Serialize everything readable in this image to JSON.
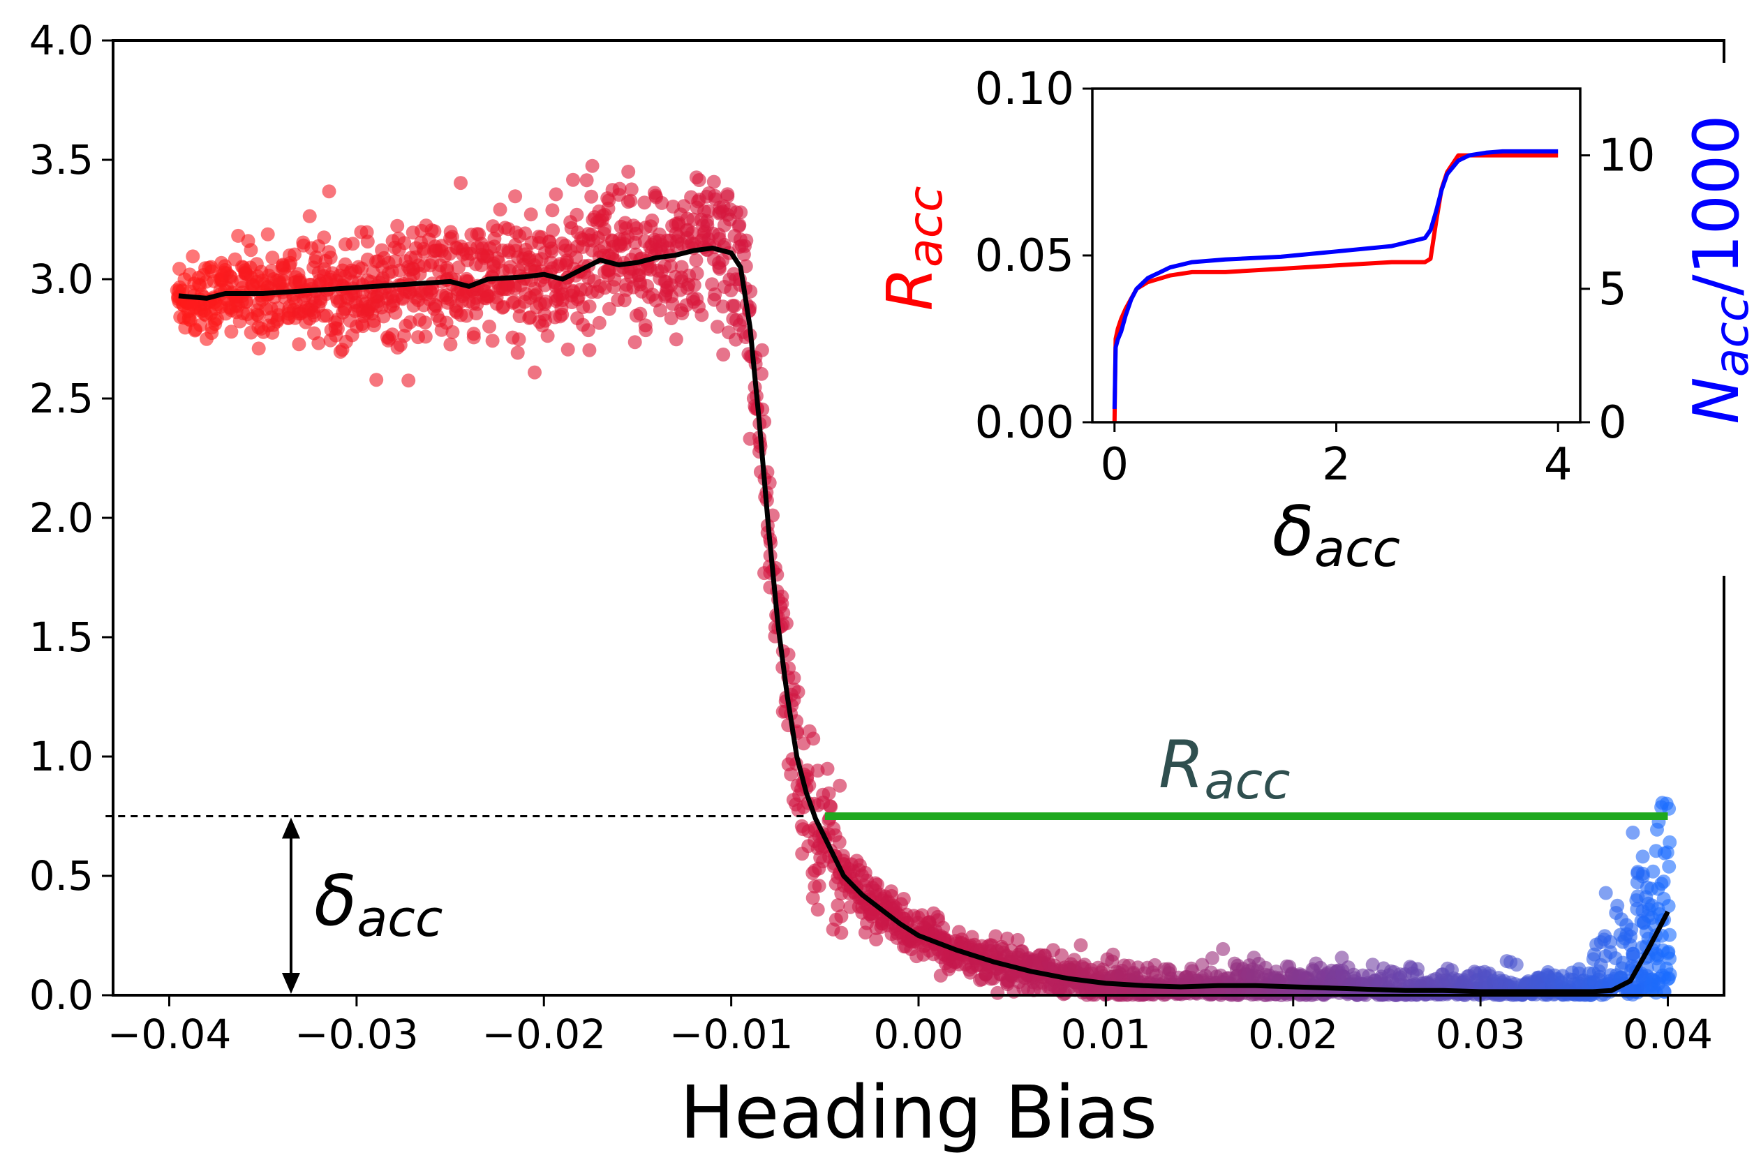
{
  "chart_data": {
    "type": "scatter",
    "main": {
      "xlabel": "Heading Bias",
      "ylabel": "",
      "xlim": [
        -0.043,
        0.043
      ],
      "ylim": [
        0.0,
        4.0
      ],
      "x_ticks": [
        -0.04,
        -0.03,
        -0.02,
        -0.01,
        0.0,
        0.01,
        0.02,
        0.03,
        0.04
      ],
      "x_tick_labels": [
        "−0.04",
        "−0.03",
        "−0.02",
        "−0.01",
        "0.00",
        "0.01",
        "0.02",
        "0.03",
        "0.04"
      ],
      "y_ticks": [
        0.0,
        0.5,
        1.0,
        1.5,
        2.0,
        2.5,
        3.0,
        3.5,
        4.0
      ],
      "y_tick_labels": [
        "0.0",
        "0.5",
        "1.0",
        "1.5",
        "2.0",
        "2.5",
        "3.0",
        "3.5",
        "4.0"
      ],
      "scatter_color_range": [
        "#ff1a1a",
        "#c8174a",
        "#1a6cff"
      ],
      "mean_curve": {
        "color": "#000000",
        "x": [
          -0.0395,
          -0.038,
          -0.037,
          -0.035,
          -0.033,
          -0.031,
          -0.029,
          -0.027,
          -0.025,
          -0.024,
          -0.023,
          -0.021,
          -0.02,
          -0.019,
          -0.018,
          -0.017,
          -0.016,
          -0.015,
          -0.014,
          -0.013,
          -0.012,
          -0.011,
          -0.01,
          -0.0095,
          -0.009,
          -0.0085,
          -0.008,
          -0.0075,
          -0.007,
          -0.0065,
          -0.006,
          -0.0055,
          -0.005,
          -0.0045,
          -0.004,
          -0.003,
          -0.002,
          -0.001,
          0.0,
          0.002,
          0.004,
          0.006,
          0.008,
          0.01,
          0.012,
          0.014,
          0.016,
          0.018,
          0.02,
          0.022,
          0.024,
          0.026,
          0.028,
          0.03,
          0.032,
          0.034,
          0.036,
          0.037,
          0.038,
          0.039,
          0.04
        ],
        "y": [
          2.93,
          2.92,
          2.94,
          2.94,
          2.95,
          2.96,
          2.97,
          2.98,
          2.99,
          2.97,
          3.0,
          3.01,
          3.02,
          3.0,
          3.04,
          3.08,
          3.06,
          3.07,
          3.09,
          3.1,
          3.12,
          3.13,
          3.11,
          3.05,
          2.8,
          2.4,
          1.95,
          1.55,
          1.25,
          1.0,
          0.85,
          0.74,
          0.66,
          0.58,
          0.5,
          0.42,
          0.36,
          0.3,
          0.25,
          0.19,
          0.14,
          0.1,
          0.07,
          0.05,
          0.04,
          0.035,
          0.04,
          0.04,
          0.035,
          0.03,
          0.025,
          0.02,
          0.02,
          0.015,
          0.015,
          0.015,
          0.015,
          0.02,
          0.06,
          0.2,
          0.35
        ]
      },
      "threshold": {
        "y": 0.75,
        "dashed_x": [
          -0.0434,
          -0.006
        ],
        "green_x": [
          -0.005,
          0.04
        ],
        "green_color": "#1fa81f",
        "r_label": "R",
        "r_sub": "acc",
        "r_color": "#2f4f4f",
        "arrow_x": -0.0335,
        "delta_label": "δ",
        "delta_sub": "acc"
      }
    },
    "inset": {
      "type": "line",
      "xlim": [
        -0.2,
        4.2
      ],
      "ylim": [
        0.0,
        0.1
      ],
      "ylim_right": [
        0,
        12.5
      ],
      "x_ticks": [
        0,
        2,
        4
      ],
      "x_tick_labels": [
        "0",
        "2",
        "4"
      ],
      "y_ticks": [
        0.0,
        0.05,
        0.1
      ],
      "y_tick_labels": [
        "0.00",
        "0.05",
        "0.10"
      ],
      "y2_ticks": [
        0,
        5,
        10
      ],
      "y2_tick_labels": [
        "0",
        "5",
        "10"
      ],
      "xlabel": "δ",
      "xlabel_sub": "acc",
      "ylabel": "R",
      "ylabel_sub": "acc",
      "ylabel_color": "#ff0000",
      "y2label": "N",
      "y2label_sub": "acc",
      "y2label_suffix": "/1000",
      "y2label_color": "#0000ff",
      "series": [
        {
          "color": "#ff0000",
          "axis": "left",
          "x": [
            0.0,
            0.01,
            0.03,
            0.06,
            0.1,
            0.15,
            0.2,
            0.3,
            0.4,
            0.5,
            0.7,
            1.0,
            1.5,
            2.0,
            2.5,
            2.8,
            2.85,
            2.9,
            2.95,
            3.0,
            3.1,
            3.15,
            3.2,
            3.5,
            4.0
          ],
          "y": [
            0.0,
            0.025,
            0.028,
            0.031,
            0.034,
            0.037,
            0.04,
            0.042,
            0.043,
            0.044,
            0.045,
            0.045,
            0.046,
            0.047,
            0.048,
            0.048,
            0.049,
            0.06,
            0.07,
            0.075,
            0.08,
            0.08,
            0.08,
            0.08,
            0.08
          ]
        },
        {
          "color": "#0000ff",
          "axis": "right",
          "x": [
            0.0,
            0.01,
            0.03,
            0.06,
            0.1,
            0.15,
            0.2,
            0.3,
            0.4,
            0.5,
            0.7,
            1.0,
            1.5,
            2.0,
            2.5,
            2.8,
            2.85,
            2.9,
            2.95,
            3.0,
            3.1,
            3.2,
            3.35,
            3.5,
            4.0
          ],
          "y": [
            0.5,
            2.8,
            3.1,
            3.4,
            4.0,
            4.6,
            5.0,
            5.4,
            5.6,
            5.8,
            6.0,
            6.1,
            6.2,
            6.4,
            6.6,
            6.9,
            7.2,
            7.9,
            8.7,
            9.3,
            9.8,
            10.0,
            10.1,
            10.15,
            10.15
          ]
        }
      ]
    }
  }
}
